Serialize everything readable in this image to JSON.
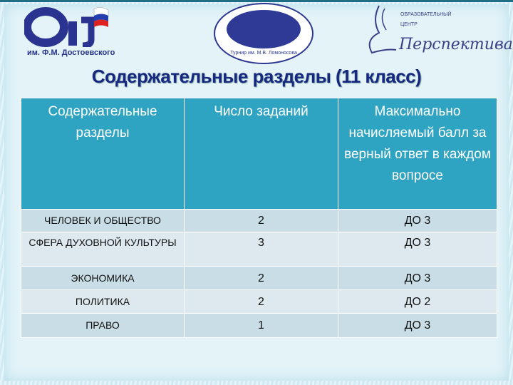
{
  "logos": {
    "left": {
      "caption": "им. Ф.М. Достоевского"
    },
    "center": {
      "caption": "Турнир им. М.В. Ломоносова"
    },
    "right": {
      "line1": "Образовательный",
      "line2": "центр",
      "name": "Перспектива"
    }
  },
  "title": "Содержательные разделы (11 класс)",
  "table": {
    "headers": [
      "Содержательные разделы",
      "Число заданий",
      "Максимально начисляемый балл за верный ответ в каждом вопросе"
    ],
    "rows": [
      {
        "section": "ЧЕЛОВЕК И ОБЩЕСТВО",
        "tasks": "2",
        "max": "ДО 3"
      },
      {
        "section": "СФЕРА ДУХОВНОЙ КУЛЬТУРЫ",
        "tasks": "3",
        "max": "ДО 3"
      },
      {
        "section": "ЭКОНОМИКА",
        "tasks": "2",
        "max": "ДО 3"
      },
      {
        "section": "ПОЛИТИКА",
        "tasks": "2",
        "max": "ДО 2"
      },
      {
        "section": "ПРАВО",
        "tasks": "1",
        "max": "ДО 3"
      }
    ]
  },
  "colors": {
    "header": "#2fa3c2",
    "title": "#16287f"
  }
}
